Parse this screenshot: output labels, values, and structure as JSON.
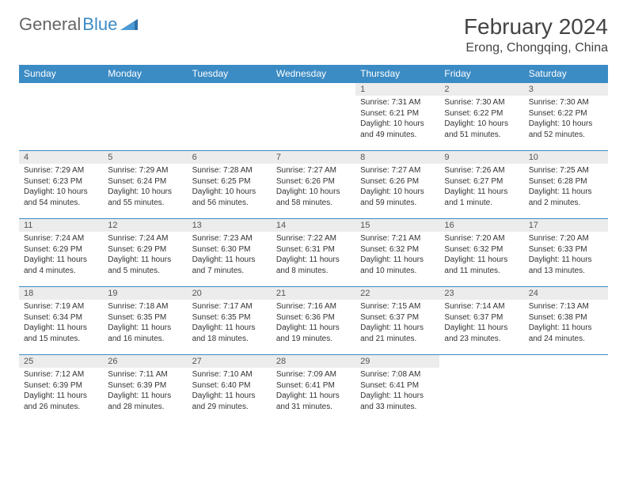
{
  "logo": {
    "text1": "General",
    "text2": "Blue"
  },
  "title": "February 2024",
  "location": "Erong, Chongqing, China",
  "colors": {
    "header_bg": "#3b8bc4",
    "header_text": "#ffffff",
    "daynum_bg": "#ececec",
    "border": "#3b8bc4",
    "text": "#333333"
  },
  "day_headers": [
    "Sunday",
    "Monday",
    "Tuesday",
    "Wednesday",
    "Thursday",
    "Friday",
    "Saturday"
  ],
  "weeks": [
    [
      {
        "n": "",
        "empty": true
      },
      {
        "n": "",
        "empty": true
      },
      {
        "n": "",
        "empty": true
      },
      {
        "n": "",
        "empty": true
      },
      {
        "n": "1",
        "sunrise": "Sunrise: 7:31 AM",
        "sunset": "Sunset: 6:21 PM",
        "daylight": "Daylight: 10 hours and 49 minutes."
      },
      {
        "n": "2",
        "sunrise": "Sunrise: 7:30 AM",
        "sunset": "Sunset: 6:22 PM",
        "daylight": "Daylight: 10 hours and 51 minutes."
      },
      {
        "n": "3",
        "sunrise": "Sunrise: 7:30 AM",
        "sunset": "Sunset: 6:22 PM",
        "daylight": "Daylight: 10 hours and 52 minutes."
      }
    ],
    [
      {
        "n": "4",
        "sunrise": "Sunrise: 7:29 AM",
        "sunset": "Sunset: 6:23 PM",
        "daylight": "Daylight: 10 hours and 54 minutes."
      },
      {
        "n": "5",
        "sunrise": "Sunrise: 7:29 AM",
        "sunset": "Sunset: 6:24 PM",
        "daylight": "Daylight: 10 hours and 55 minutes."
      },
      {
        "n": "6",
        "sunrise": "Sunrise: 7:28 AM",
        "sunset": "Sunset: 6:25 PM",
        "daylight": "Daylight: 10 hours and 56 minutes."
      },
      {
        "n": "7",
        "sunrise": "Sunrise: 7:27 AM",
        "sunset": "Sunset: 6:26 PM",
        "daylight": "Daylight: 10 hours and 58 minutes."
      },
      {
        "n": "8",
        "sunrise": "Sunrise: 7:27 AM",
        "sunset": "Sunset: 6:26 PM",
        "daylight": "Daylight: 10 hours and 59 minutes."
      },
      {
        "n": "9",
        "sunrise": "Sunrise: 7:26 AM",
        "sunset": "Sunset: 6:27 PM",
        "daylight": "Daylight: 11 hours and 1 minute."
      },
      {
        "n": "10",
        "sunrise": "Sunrise: 7:25 AM",
        "sunset": "Sunset: 6:28 PM",
        "daylight": "Daylight: 11 hours and 2 minutes."
      }
    ],
    [
      {
        "n": "11",
        "sunrise": "Sunrise: 7:24 AM",
        "sunset": "Sunset: 6:29 PM",
        "daylight": "Daylight: 11 hours and 4 minutes."
      },
      {
        "n": "12",
        "sunrise": "Sunrise: 7:24 AM",
        "sunset": "Sunset: 6:29 PM",
        "daylight": "Daylight: 11 hours and 5 minutes."
      },
      {
        "n": "13",
        "sunrise": "Sunrise: 7:23 AM",
        "sunset": "Sunset: 6:30 PM",
        "daylight": "Daylight: 11 hours and 7 minutes."
      },
      {
        "n": "14",
        "sunrise": "Sunrise: 7:22 AM",
        "sunset": "Sunset: 6:31 PM",
        "daylight": "Daylight: 11 hours and 8 minutes."
      },
      {
        "n": "15",
        "sunrise": "Sunrise: 7:21 AM",
        "sunset": "Sunset: 6:32 PM",
        "daylight": "Daylight: 11 hours and 10 minutes."
      },
      {
        "n": "16",
        "sunrise": "Sunrise: 7:20 AM",
        "sunset": "Sunset: 6:32 PM",
        "daylight": "Daylight: 11 hours and 11 minutes."
      },
      {
        "n": "17",
        "sunrise": "Sunrise: 7:20 AM",
        "sunset": "Sunset: 6:33 PM",
        "daylight": "Daylight: 11 hours and 13 minutes."
      }
    ],
    [
      {
        "n": "18",
        "sunrise": "Sunrise: 7:19 AM",
        "sunset": "Sunset: 6:34 PM",
        "daylight": "Daylight: 11 hours and 15 minutes."
      },
      {
        "n": "19",
        "sunrise": "Sunrise: 7:18 AM",
        "sunset": "Sunset: 6:35 PM",
        "daylight": "Daylight: 11 hours and 16 minutes."
      },
      {
        "n": "20",
        "sunrise": "Sunrise: 7:17 AM",
        "sunset": "Sunset: 6:35 PM",
        "daylight": "Daylight: 11 hours and 18 minutes."
      },
      {
        "n": "21",
        "sunrise": "Sunrise: 7:16 AM",
        "sunset": "Sunset: 6:36 PM",
        "daylight": "Daylight: 11 hours and 19 minutes."
      },
      {
        "n": "22",
        "sunrise": "Sunrise: 7:15 AM",
        "sunset": "Sunset: 6:37 PM",
        "daylight": "Daylight: 11 hours and 21 minutes."
      },
      {
        "n": "23",
        "sunrise": "Sunrise: 7:14 AM",
        "sunset": "Sunset: 6:37 PM",
        "daylight": "Daylight: 11 hours and 23 minutes."
      },
      {
        "n": "24",
        "sunrise": "Sunrise: 7:13 AM",
        "sunset": "Sunset: 6:38 PM",
        "daylight": "Daylight: 11 hours and 24 minutes."
      }
    ],
    [
      {
        "n": "25",
        "sunrise": "Sunrise: 7:12 AM",
        "sunset": "Sunset: 6:39 PM",
        "daylight": "Daylight: 11 hours and 26 minutes."
      },
      {
        "n": "26",
        "sunrise": "Sunrise: 7:11 AM",
        "sunset": "Sunset: 6:39 PM",
        "daylight": "Daylight: 11 hours and 28 minutes."
      },
      {
        "n": "27",
        "sunrise": "Sunrise: 7:10 AM",
        "sunset": "Sunset: 6:40 PM",
        "daylight": "Daylight: 11 hours and 29 minutes."
      },
      {
        "n": "28",
        "sunrise": "Sunrise: 7:09 AM",
        "sunset": "Sunset: 6:41 PM",
        "daylight": "Daylight: 11 hours and 31 minutes."
      },
      {
        "n": "29",
        "sunrise": "Sunrise: 7:08 AM",
        "sunset": "Sunset: 6:41 PM",
        "daylight": "Daylight: 11 hours and 33 minutes."
      },
      {
        "n": "",
        "empty": true
      },
      {
        "n": "",
        "empty": true
      }
    ]
  ]
}
